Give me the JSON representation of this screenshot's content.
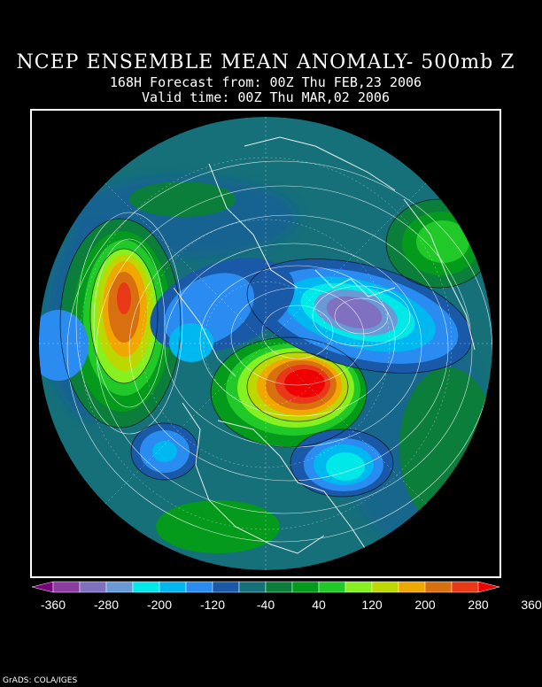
{
  "header": {
    "title": "NCEP ENSEMBLE MEAN ANOMALY- 500mb Z",
    "subtitle": "168H Forecast from: 00Z Thu FEB,23 2006",
    "valid_time": "Valid time: 00Z Thu MAR,02 2006"
  },
  "colorbar": {
    "colors": [
      "#7a007a",
      "#8c3ca0",
      "#8070c0",
      "#6a9ad6",
      "#00e8e8",
      "#00b8f0",
      "#2a8cf0",
      "#1a58a8",
      "#16707a",
      "#0c7e3c",
      "#049a1c",
      "#20c828",
      "#86f020",
      "#bcd800",
      "#f0a800",
      "#d87010",
      "#e83818",
      "#f00000"
    ],
    "labels": [
      "-360",
      "-280",
      "-200",
      "-120",
      "-40",
      "40",
      "120",
      "200",
      "280",
      "360"
    ]
  },
  "credit": "GrADS: COLA/IGES"
}
